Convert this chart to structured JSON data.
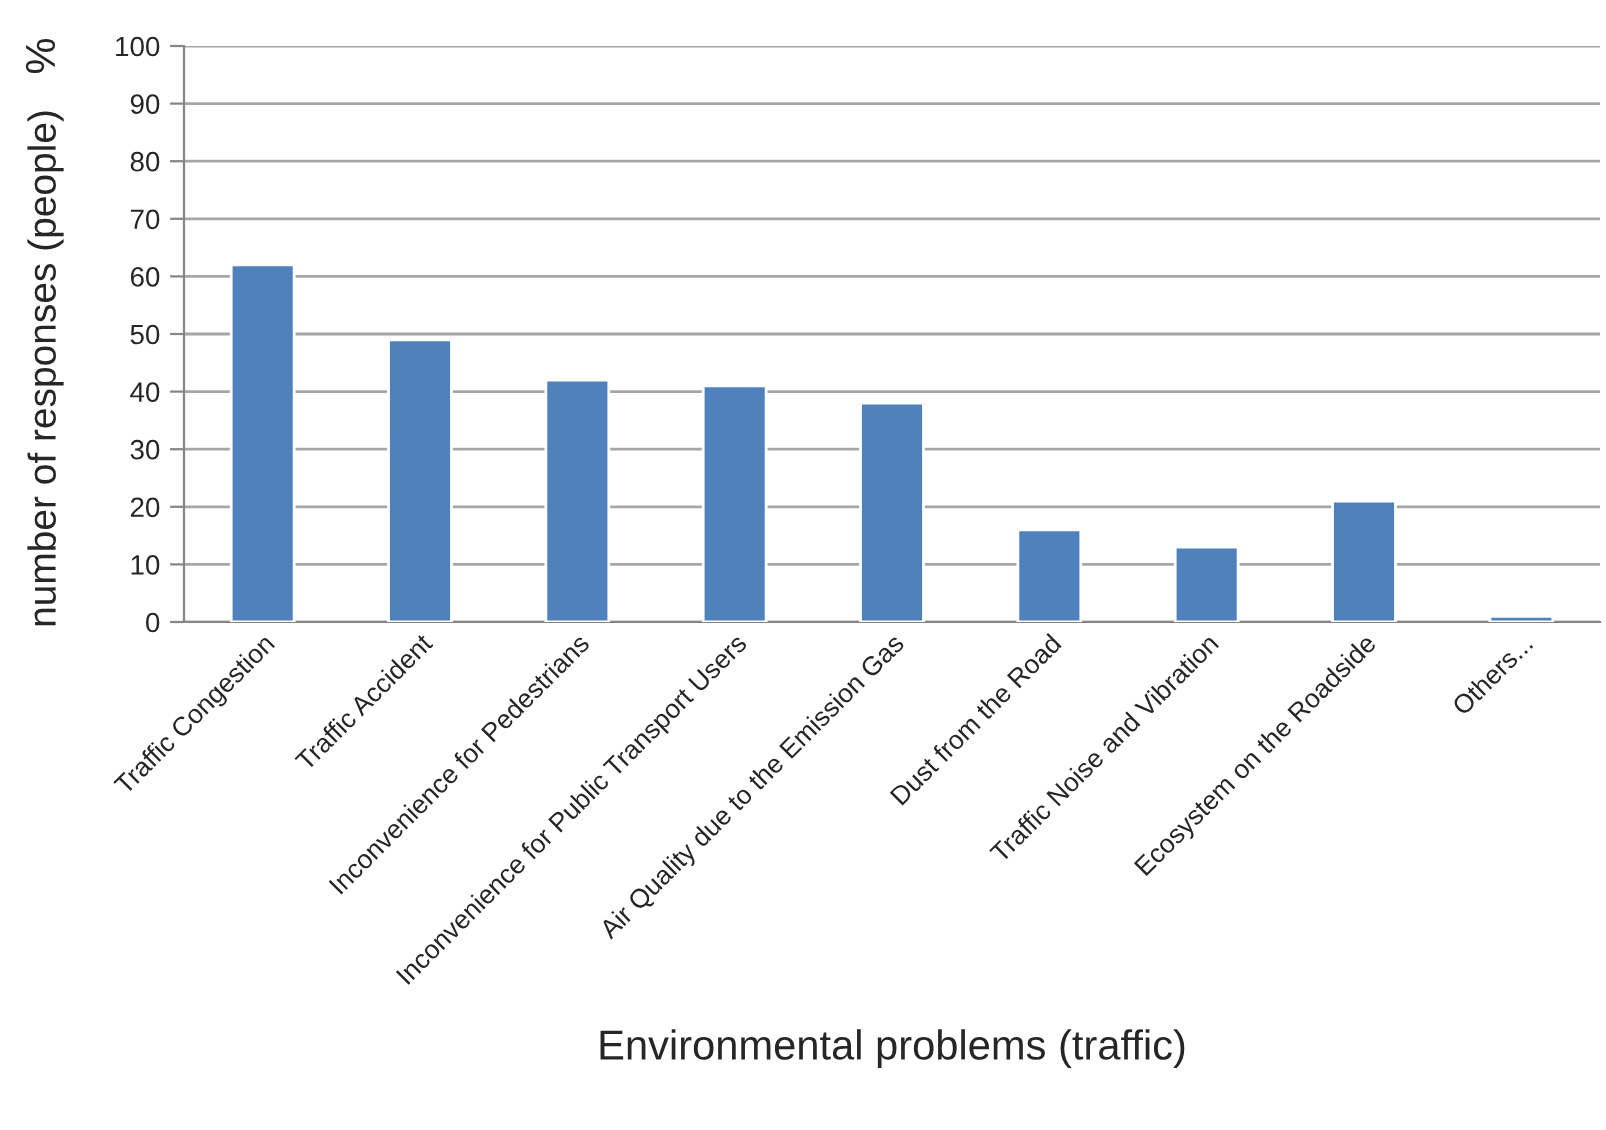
{
  "chart_data": {
    "type": "bar",
    "categories": [
      "Traffic Congestion",
      "Traffic Accident",
      "Inconvenience for Pedestrians",
      "Inconvenience for Public Transport Users",
      "Air Quality due to the Emission Gas",
      "Dust from the Road",
      "Traffic Noise and Vibration",
      "Ecosystem on the Roadside",
      "Others..."
    ],
    "values": [
      62,
      49,
      42,
      41,
      38,
      16,
      13,
      21,
      1
    ],
    "color": "#4f81bd",
    "xlabel": "Environmental problems (traffic)",
    "ylabel": "number of responses (people)",
    "annotations": [
      "%"
    ],
    "ylim": [
      0,
      100
    ],
    "yticks": [
      0,
      10,
      20,
      30,
      40,
      50,
      60,
      70,
      80,
      90,
      100
    ],
    "grid": "y",
    "legend": false
  }
}
